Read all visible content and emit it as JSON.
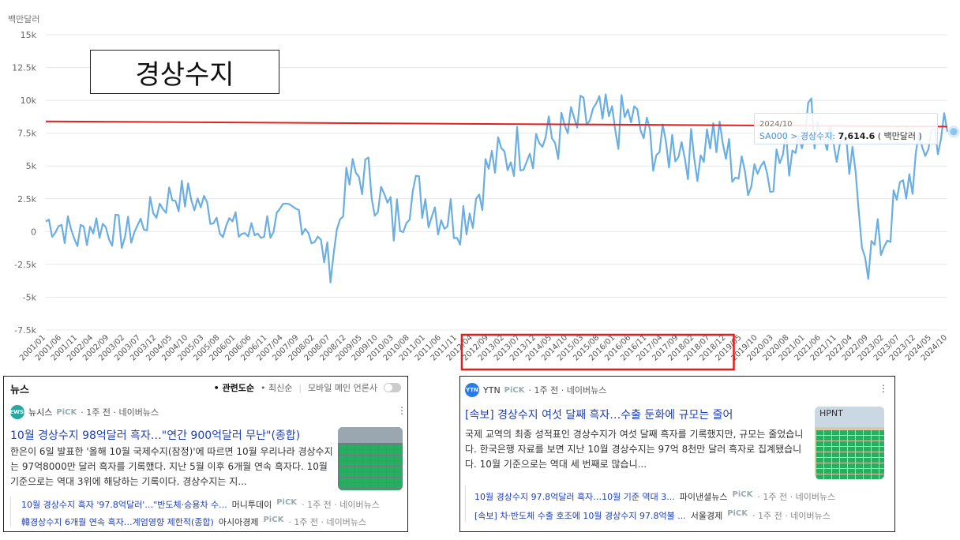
{
  "chart_data": {
    "type": "line",
    "unit_label": "백만달러",
    "title": "경상수지",
    "ylim": [
      -7500,
      15000
    ],
    "yticks": [
      "15k",
      "12.5k",
      "10k",
      "7.5k",
      "5k",
      "2.5k",
      "0",
      "-2.5k",
      "-5k",
      "-7.5k"
    ],
    "ytick_values": [
      15000,
      12500,
      10000,
      7500,
      5000,
      2500,
      0,
      -2500,
      -5000,
      -7500
    ],
    "xlim": [
      "2001/01",
      "2024/10"
    ],
    "xticks": [
      "2001/01",
      "2001/06",
      "2001/11",
      "2002/04",
      "2002/09",
      "2003/02",
      "2003/07",
      "2003/12",
      "2004/05",
      "2004/10",
      "2005/03",
      "2005/08",
      "2006/01",
      "2006/06",
      "2006/11",
      "2007/04",
      "2007/09",
      "2008/02",
      "2008/07",
      "2008/12",
      "2009/05",
      "2009/10",
      "2010/03",
      "2010/08",
      "2011/01",
      "2011/06",
      "2011/11",
      "2012/04",
      "2012/09",
      "2013/02",
      "2013/07",
      "2013/12",
      "2014/05",
      "2014/10",
      "2015/03",
      "2015/08",
      "2016/01",
      "2016/06",
      "2016/11",
      "2017/04",
      "2017/09",
      "2018/02",
      "2018/07",
      "2018/12",
      "2019/05",
      "2019/10",
      "2020/03",
      "2020/08",
      "2021/01",
      "2021/06",
      "2021/11",
      "2022/04",
      "2022/09",
      "2023/02",
      "2023/07",
      "2023/12",
      "2024/05",
      "2024/10"
    ],
    "series": [
      {
        "name": "경상수지",
        "color": "#6aaee3",
        "anchors": [
          [
            "2001/01",
            800
          ],
          [
            "2001/06",
            500
          ],
          [
            "2001/11",
            -500
          ],
          [
            "2002/04",
            600
          ],
          [
            "2002/09",
            300
          ],
          [
            "2003/02",
            -300
          ],
          [
            "2003/07",
            500
          ],
          [
            "2003/12",
            1800
          ],
          [
            "2004/05",
            2800
          ],
          [
            "2004/10",
            2600
          ],
          [
            "2005/03",
            2000
          ],
          [
            "2005/08",
            1000
          ],
          [
            "2006/01",
            200
          ],
          [
            "2006/06",
            -300
          ],
          [
            "2006/11",
            500
          ],
          [
            "2007/04",
            800
          ],
          [
            "2007/09",
            1500
          ],
          [
            "2008/02",
            -500
          ],
          [
            "2008/07",
            -2500
          ],
          [
            "2008/12",
            3500
          ],
          [
            "2009/05",
            4500
          ],
          [
            "2009/10",
            3000
          ],
          [
            "2010/03",
            500
          ],
          [
            "2010/08",
            3000
          ],
          [
            "2011/01",
            2500
          ],
          [
            "2011/06",
            1500
          ],
          [
            "2011/11",
            1000
          ],
          [
            "2012/04",
            2000
          ],
          [
            "2012/09",
            5000
          ],
          [
            "2013/02",
            5500
          ],
          [
            "2013/07",
            6500
          ],
          [
            "2013/12",
            7000
          ],
          [
            "2014/05",
            7000
          ],
          [
            "2014/10",
            7500
          ],
          [
            "2015/03",
            8500
          ],
          [
            "2015/08",
            8500
          ],
          [
            "2016/01",
            8000
          ],
          [
            "2016/06",
            8800
          ],
          [
            "2016/11",
            7000
          ],
          [
            "2017/04",
            6000
          ],
          [
            "2017/09",
            7000
          ],
          [
            "2018/02",
            5500
          ],
          [
            "2018/07",
            7500
          ],
          [
            "2018/12",
            6000
          ],
          [
            "2019/05",
            4000
          ],
          [
            "2019/10",
            5500
          ],
          [
            "2020/03",
            5000
          ],
          [
            "2020/08",
            6000
          ],
          [
            "2021/01",
            9000
          ],
          [
            "2021/06",
            8000
          ],
          [
            "2021/11",
            6500
          ],
          [
            "2022/04",
            4500
          ],
          [
            "2022/09",
            -2000
          ],
          [
            "2023/02",
            -500
          ],
          [
            "2023/07",
            2500
          ],
          [
            "2023/12",
            5000
          ],
          [
            "2024/05",
            7500
          ],
          [
            "2024/10",
            7614.6
          ]
        ]
      },
      {
        "name": "trend",
        "color": "#e02020",
        "values": [
          [
            "2001/01",
            8400
          ],
          [
            "2024/10",
            8000
          ]
        ]
      }
    ],
    "highlight_box": {
      "from": "2012/04",
      "to": "2018/12",
      "color": "#e02020"
    },
    "grid": true,
    "tooltip": {
      "date": "2024/10",
      "series_code": "SA000 > ",
      "series_name": "경상수지: ",
      "value": "7,614.6",
      "unit": "( 백만달러 )"
    }
  },
  "news_left": {
    "header": {
      "title": "뉴스",
      "sort_relevance": "• 관련도순",
      "sort_latest": "• 최신순",
      "mobile_main": "모바일 메인 언론사"
    },
    "source": {
      "press": "뉴시스",
      "pick": "PiCK",
      "meta": "· 1주 전 · 네이버뉴스",
      "logo_text": "NEWSIS"
    },
    "headline": "10월 경상수지 98억달러 흑자…\"연간 900억달러 무난\"(종합)",
    "snippet": "한은이 6일 발표한 '올해 10월 국제수지(잠정)'에 따르면 10월 우리나라 경상수지는 97억8000만 달러 흑자를 기록했다. 지난 5월 이후 6개월 연속 흑자다. 10월 기준으로는 역대 3위에 해당하는 기록이다. 경상수지는 지...",
    "related": [
      {
        "title": "10월 경상수지 흑자 '97.8억달러'…\"반도체·승용차 수...",
        "press": "머니투데이",
        "pick": "PiCK",
        "meta": "· 1주 전 · 네이버뉴스"
      },
      {
        "title": "韓경상수지 6개월 연속 흑자…계엄영향 제한적(종합)",
        "press": "아시아경제",
        "pick": "PiCK",
        "meta": "· 1주 전 · 네이버뉴스"
      }
    ]
  },
  "news_right": {
    "source": {
      "press": "YTN",
      "pick": "PiCK",
      "meta": "· 1주 전 · 네이버뉴스",
      "logo_text": "YTN"
    },
    "headline": "[속보] 경상수지 여섯 달째 흑자…수출 둔화에 규모는 줄어",
    "snippet": "국제 교역의 최종 성적표인 경상수지가 여섯 달째 흑자를 기록했지만, 규모는 줄었습니다. 한국은행 자료를 보면 지난 10월 경상수지는 97억 8천만 달러 흑자로 집계됐습니다. 10월 기준으로는 역대 세 번째로 많습니...",
    "thumb_text": "HPNT",
    "related": [
      {
        "title": "10월 경상수지 97.8억달러 흑자…10월 기준 역대 3...",
        "press": "파이낸셜뉴스",
        "pick": "PiCK",
        "meta": "· 1주 전 · 네이버뉴스"
      },
      {
        "title": "[속보] 차·반도체 수출 호조에 10월 경상수지 97.8억불 ...",
        "press": "서울경제",
        "pick": "PiCK",
        "meta": "· 1주 전 · 네이버뉴스"
      }
    ]
  }
}
